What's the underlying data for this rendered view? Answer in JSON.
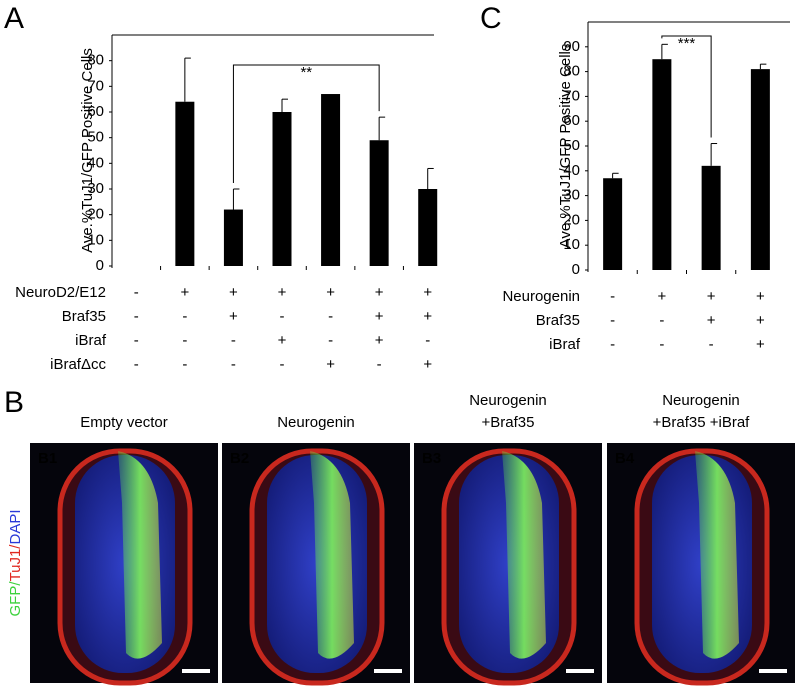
{
  "panel_labels": [
    "A",
    "B",
    "C"
  ],
  "chart_data": [
    {
      "type": "bar",
      "y_label": "Ave.%TuJ1/GFP Positive Cells",
      "color": "#000000",
      "values": [
        0,
        64,
        22,
        60,
        67,
        49,
        30
      ],
      "errors": [
        null,
        17,
        8,
        5,
        null,
        9,
        8
      ],
      "ylim": [
        0,
        90
      ],
      "yticks": [
        0,
        10,
        20,
        30,
        40,
        50,
        60,
        70,
        80
      ],
      "annotation": "**",
      "conditions": [
        {
          "label": "NeuroD2/E12",
          "signs": [
            "-",
            "+",
            "+",
            "+",
            "+",
            "+",
            "+"
          ]
        },
        {
          "label": "Braf35",
          "signs": [
            "-",
            "-",
            "+",
            "-",
            "-",
            "+",
            "+"
          ]
        },
        {
          "label": "iBraf",
          "signs": [
            "-",
            "-",
            "-",
            "+",
            "-",
            "+",
            "-"
          ]
        },
        {
          "label": "iBrafΔcc",
          "signs": [
            "-",
            "-",
            "-",
            "-",
            "+",
            "-",
            "+"
          ]
        }
      ]
    },
    {
      "type": "bar",
      "y_label": "Ave.%TuJ1/GFP Positive Cells",
      "color": "#000000",
      "values": [
        37,
        85,
        42,
        81
      ],
      "errors": [
        2,
        6,
        9,
        2
      ],
      "ylim": [
        0,
        100
      ],
      "yticks": [
        0,
        10,
        20,
        30,
        40,
        50,
        60,
        70,
        80,
        90
      ],
      "annotation": "***",
      "conditions": [
        {
          "label": "Neurogenin",
          "signs": [
            "-",
            "+",
            "+",
            "+"
          ]
        },
        {
          "label": "Braf35",
          "signs": [
            "-",
            "-",
            "+",
            "+"
          ]
        },
        {
          "label": "iBraf",
          "signs": [
            "-",
            "-",
            "-",
            "+"
          ]
        }
      ]
    }
  ],
  "images": {
    "stain_label": [
      {
        "text": "GFP/",
        "color": "#3cd23c"
      },
      {
        "text": "TuJ1/",
        "color": "#e0261e"
      },
      {
        "text": "DAPI",
        "color": "#2a3ad8"
      }
    ],
    "panels": [
      {
        "tag": "B1",
        "title": [
          "Empty vector"
        ]
      },
      {
        "tag": "B2",
        "title": [
          "Neurogenin"
        ]
      },
      {
        "tag": "B3",
        "title": [
          "Neurogenin",
          "+Braf35"
        ]
      },
      {
        "tag": "B4",
        "title": [
          "Neurogenin",
          "+Braf35 +iBraf"
        ]
      }
    ]
  }
}
